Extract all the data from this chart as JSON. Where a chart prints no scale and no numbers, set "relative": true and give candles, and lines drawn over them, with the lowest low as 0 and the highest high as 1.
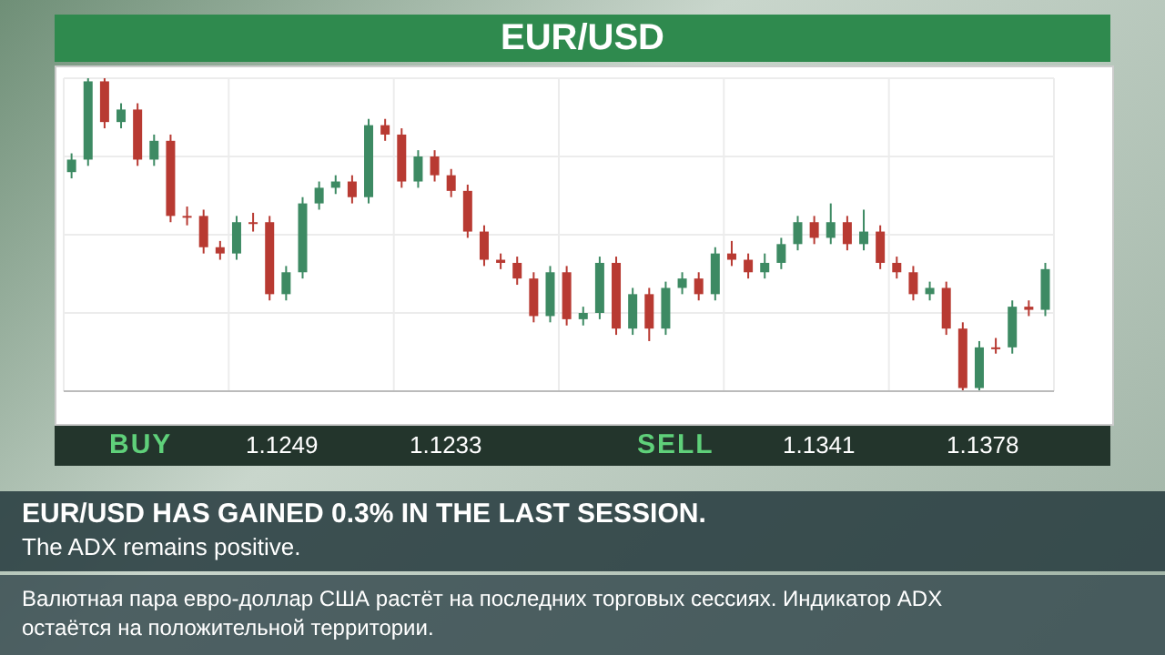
{
  "chart_data": {
    "type": "candlestick",
    "title": "EUR/USD",
    "relative": true,
    "grid": true,
    "colors": [
      "#3d8a63",
      "#3d8a63",
      "#b83a32",
      "#3d8a63",
      "#b83a32",
      "#3d8a63",
      "#b83a32",
      "#b83a32",
      "#b83a32",
      "#b83a32",
      "#3d8a63",
      "#b83a32",
      "#b83a32",
      "#3d8a63",
      "#3d8a63",
      "#3d8a63",
      "#3d8a63",
      "#b83a32",
      "#3d8a63",
      "#b83a32",
      "#b83a32",
      "#3d8a63",
      "#b83a32",
      "#b83a32",
      "#b83a32",
      "#b83a32",
      "#b83a32",
      "#b83a32",
      "#b83a32",
      "#3d8a63",
      "#b83a32",
      "#3d8a63",
      "#3d8a63",
      "#b83a32",
      "#3d8a63",
      "#b83a32",
      "#3d8a63",
      "#3d8a63",
      "#b83a32",
      "#3d8a63",
      "#b83a32",
      "#b83a32",
      "#3d8a63",
      "#3d8a63",
      "#3d8a63",
      "#b83a32",
      "#3d8a63",
      "#b83a32",
      "#3d8a63",
      "#b83a32",
      "#b83a32",
      "#b83a32",
      "#3d8a63",
      "#b83a32",
      "#b83a32",
      "#3d8a63",
      "#b83a32",
      "#3d8a63",
      "#b83a32",
      "#3d8a63"
    ],
    "categories": [
      null,
      null,
      null,
      null,
      null,
      null,
      null,
      null,
      null,
      null,
      null,
      null,
      null,
      null,
      null,
      null,
      null,
      null,
      null,
      null,
      null,
      null,
      null,
      null,
      null,
      null,
      null,
      null,
      null,
      null,
      null,
      null,
      null,
      null,
      null,
      null,
      null,
      null,
      null,
      null,
      null,
      null,
      null,
      null,
      null,
      null,
      null,
      null,
      null,
      null,
      null,
      null,
      null,
      null,
      null,
      null,
      null,
      null,
      null,
      null
    ],
    "ohlc": [
      [
        0.7,
        0.76,
        0.68,
        0.74
      ],
      [
        0.74,
        1,
        0.72,
        0.99
      ],
      [
        0.99,
        1,
        0.84,
        0.86
      ],
      [
        0.86,
        0.92,
        0.84,
        0.9
      ],
      [
        0.9,
        0.92,
        0.72,
        0.74
      ],
      [
        0.74,
        0.82,
        0.72,
        0.8
      ],
      [
        0.8,
        0.82,
        0.54,
        0.56
      ],
      [
        0.56,
        0.59,
        0.53,
        0.56
      ],
      [
        0.56,
        0.58,
        0.44,
        0.46
      ],
      [
        0.46,
        0.48,
        0.42,
        0.44
      ],
      [
        0.44,
        0.56,
        0.42,
        0.54
      ],
      [
        0.54,
        0.57,
        0.51,
        0.54
      ],
      [
        0.54,
        0.56,
        0.29,
        0.31
      ],
      [
        0.31,
        0.4,
        0.29,
        0.38
      ],
      [
        0.38,
        0.62,
        0.36,
        0.6
      ],
      [
        0.6,
        0.67,
        0.58,
        0.65
      ],
      [
        0.65,
        0.69,
        0.63,
        0.67
      ],
      [
        0.67,
        0.69,
        0.6,
        0.62
      ],
      [
        0.62,
        0.87,
        0.6,
        0.85
      ],
      [
        0.85,
        0.87,
        0.8,
        0.82
      ],
      [
        0.82,
        0.84,
        0.65,
        0.67
      ],
      [
        0.67,
        0.77,
        0.65,
        0.75
      ],
      [
        0.75,
        0.77,
        0.67,
        0.69
      ],
      [
        0.69,
        0.71,
        0.62,
        0.64
      ],
      [
        0.64,
        0.66,
        0.49,
        0.51
      ],
      [
        0.51,
        0.53,
        0.4,
        0.42
      ],
      [
        0.42,
        0.44,
        0.39,
        0.41
      ],
      [
        0.41,
        0.43,
        0.34,
        0.36
      ],
      [
        0.36,
        0.38,
        0.22,
        0.24
      ],
      [
        0.24,
        0.4,
        0.22,
        0.38
      ],
      [
        0.38,
        0.4,
        0.21,
        0.23
      ],
      [
        0.23,
        0.27,
        0.21,
        0.25
      ],
      [
        0.25,
        0.43,
        0.23,
        0.41
      ],
      [
        0.41,
        0.43,
        0.18,
        0.2
      ],
      [
        0.2,
        0.33,
        0.18,
        0.31
      ],
      [
        0.31,
        0.33,
        0.16,
        0.2
      ],
      [
        0.2,
        0.35,
        0.18,
        0.33
      ],
      [
        0.33,
        0.38,
        0.31,
        0.36
      ],
      [
        0.36,
        0.38,
        0.29,
        0.31
      ],
      [
        0.31,
        0.46,
        0.29,
        0.44
      ],
      [
        0.44,
        0.48,
        0.4,
        0.42
      ],
      [
        0.42,
        0.44,
        0.36,
        0.38
      ],
      [
        0.38,
        0.44,
        0.36,
        0.41
      ],
      [
        0.41,
        0.49,
        0.39,
        0.47
      ],
      [
        0.47,
        0.56,
        0.45,
        0.54
      ],
      [
        0.54,
        0.56,
        0.47,
        0.49
      ],
      [
        0.49,
        0.6,
        0.47,
        0.54
      ],
      [
        0.54,
        0.56,
        0.45,
        0.47
      ],
      [
        0.47,
        0.58,
        0.45,
        0.51
      ],
      [
        0.51,
        0.53,
        0.39,
        0.41
      ],
      [
        0.41,
        0.43,
        0.36,
        0.38
      ],
      [
        0.38,
        0.4,
        0.29,
        0.31
      ],
      [
        0.31,
        0.35,
        0.29,
        0.33
      ],
      [
        0.33,
        0.35,
        0.18,
        0.2
      ],
      [
        0.2,
        0.22,
        0,
        0.01
      ],
      [
        0.01,
        0.16,
        0,
        0.14
      ],
      [
        0.14,
        0.17,
        0.12,
        0.14
      ],
      [
        0.14,
        0.29,
        0.12,
        0.27
      ],
      [
        0.27,
        0.29,
        0.24,
        0.26
      ],
      [
        0.26,
        0.41,
        0.24,
        0.39
      ]
    ],
    "annotations": [
      "BUY",
      "1.1249",
      "1.1233",
      "SELL",
      "1.1341",
      "1.1378",
      "EUR/USD HAS GAINED 0.3% IN THE LAST SESSION.",
      "The ADX remains positive.",
      "Валютная пара евро-доллар США растёт на последних торговых сессиях. Индикатор ADX остаётся на положительной территории."
    ]
  }
}
